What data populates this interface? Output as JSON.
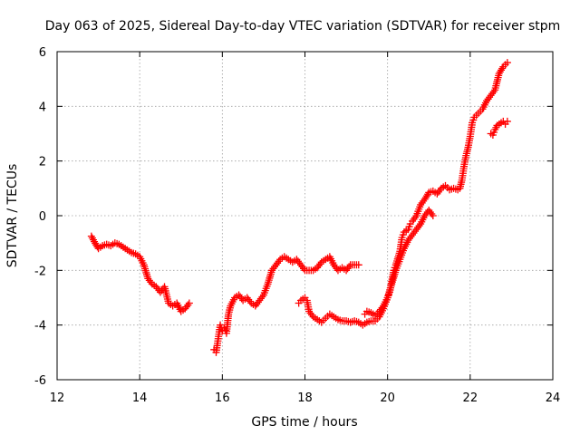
{
  "chart_data": {
    "type": "scatter",
    "title": "Day 063 of 2025, Sidereal Day-to-day VTEC variation (SDTVAR) for receiver stpm",
    "xlabel": "GPS time / hours",
    "ylabel": "SDTVAR / TECUs",
    "xlim": [
      12,
      24
    ],
    "ylim": [
      -6,
      6
    ],
    "xticks": [
      12,
      14,
      16,
      18,
      20,
      22,
      24
    ],
    "yticks": [
      -6,
      -4,
      -2,
      0,
      2,
      4,
      6
    ],
    "xtick_labels": [
      "12",
      "14",
      "16",
      "18",
      "20",
      "22",
      "24"
    ],
    "ytick_labels": [
      "-6",
      "-4",
      "-2",
      "0",
      "2",
      "4",
      "6"
    ],
    "grid": true,
    "marker": "+",
    "color": "#ff0000",
    "series": [
      {
        "name": "track-1",
        "points": [
          [
            12.83,
            -0.75
          ],
          [
            12.9,
            -0.95
          ],
          [
            13.0,
            -1.2
          ],
          [
            13.1,
            -1.1
          ],
          [
            13.2,
            -1.05
          ],
          [
            13.3,
            -1.1
          ],
          [
            13.4,
            -1.0
          ],
          [
            13.5,
            -1.05
          ],
          [
            13.6,
            -1.15
          ],
          [
            13.7,
            -1.25
          ],
          [
            13.8,
            -1.35
          ],
          [
            13.9,
            -1.4
          ],
          [
            14.0,
            -1.5
          ],
          [
            14.1,
            -1.8
          ],
          [
            14.2,
            -2.3
          ],
          [
            14.3,
            -2.5
          ],
          [
            14.4,
            -2.6
          ],
          [
            14.5,
            -2.8
          ],
          [
            14.6,
            -2.6
          ],
          [
            14.7,
            -3.2
          ],
          [
            14.8,
            -3.3
          ],
          [
            14.9,
            -3.2
          ],
          [
            15.0,
            -3.5
          ],
          [
            15.1,
            -3.4
          ],
          [
            15.2,
            -3.2
          ]
        ]
      },
      {
        "name": "track-2",
        "points": [
          [
            15.8,
            -4.9
          ],
          [
            15.85,
            -5.0
          ],
          [
            15.9,
            -4.5
          ],
          [
            15.95,
            -4.0
          ],
          [
            16.0,
            -4.2
          ],
          [
            16.05,
            -4.1
          ],
          [
            16.1,
            -4.3
          ],
          [
            16.15,
            -3.6
          ],
          [
            16.2,
            -3.3
          ],
          [
            16.3,
            -3.0
          ],
          [
            16.4,
            -2.9
          ],
          [
            16.5,
            -3.1
          ],
          [
            16.6,
            -3.0
          ],
          [
            16.7,
            -3.2
          ],
          [
            16.8,
            -3.3
          ],
          [
            16.9,
            -3.1
          ],
          [
            17.0,
            -2.9
          ],
          [
            17.1,
            -2.5
          ],
          [
            17.2,
            -2.0
          ],
          [
            17.3,
            -1.8
          ],
          [
            17.4,
            -1.6
          ],
          [
            17.5,
            -1.5
          ],
          [
            17.6,
            -1.6
          ],
          [
            17.7,
            -1.7
          ],
          [
            17.8,
            -1.6
          ],
          [
            17.9,
            -1.8
          ],
          [
            18.0,
            -2.0
          ],
          [
            18.1,
            -2.0
          ],
          [
            18.2,
            -2.0
          ],
          [
            18.3,
            -1.9
          ],
          [
            18.4,
            -1.7
          ],
          [
            18.5,
            -1.6
          ],
          [
            18.6,
            -1.5
          ],
          [
            18.7,
            -1.8
          ],
          [
            18.8,
            -2.0
          ],
          [
            18.9,
            -1.9
          ],
          [
            19.0,
            -2.0
          ],
          [
            19.1,
            -1.8
          ],
          [
            19.2,
            -1.8
          ],
          [
            19.3,
            -1.8
          ]
        ]
      },
      {
        "name": "track-3",
        "points": [
          [
            17.85,
            -3.2
          ],
          [
            17.9,
            -3.1
          ],
          [
            18.0,
            -3.0
          ],
          [
            18.05,
            -3.1
          ],
          [
            18.1,
            -3.5
          ],
          [
            18.2,
            -3.7
          ],
          [
            18.3,
            -3.8
          ],
          [
            18.4,
            -3.9
          ],
          [
            18.5,
            -3.75
          ],
          [
            18.6,
            -3.6
          ],
          [
            18.7,
            -3.7
          ],
          [
            18.8,
            -3.8
          ],
          [
            18.9,
            -3.85
          ],
          [
            19.0,
            -3.85
          ],
          [
            19.1,
            -3.9
          ],
          [
            19.2,
            -3.85
          ],
          [
            19.3,
            -3.9
          ],
          [
            19.4,
            -4.0
          ],
          [
            19.5,
            -3.9
          ],
          [
            19.6,
            -3.85
          ],
          [
            19.7,
            -3.85
          ],
          [
            19.8,
            -3.7
          ],
          [
            19.9,
            -3.4
          ],
          [
            20.0,
            -3.0
          ],
          [
            20.1,
            -2.5
          ],
          [
            20.2,
            -2.0
          ],
          [
            20.3,
            -1.6
          ],
          [
            20.4,
            -1.2
          ],
          [
            20.5,
            -0.9
          ],
          [
            20.6,
            -0.7
          ],
          [
            20.7,
            -0.5
          ],
          [
            20.8,
            -0.3
          ],
          [
            20.9,
            0.0
          ],
          [
            21.0,
            0.2
          ],
          [
            21.1,
            0.0
          ]
        ]
      },
      {
        "name": "track-4",
        "points": [
          [
            19.45,
            -3.6
          ],
          [
            19.5,
            -3.5
          ],
          [
            19.6,
            -3.55
          ],
          [
            19.7,
            -3.65
          ],
          [
            19.8,
            -3.5
          ],
          [
            19.9,
            -3.3
          ],
          [
            20.0,
            -3.0
          ],
          [
            20.05,
            -2.8
          ],
          [
            20.1,
            -2.4
          ],
          [
            20.15,
            -2.0
          ],
          [
            20.2,
            -1.8
          ],
          [
            20.3,
            -1.3
          ],
          [
            20.35,
            -0.8
          ],
          [
            20.4,
            -0.6
          ],
          [
            20.5,
            -0.5
          ],
          [
            20.55,
            -0.3
          ],
          [
            20.6,
            -0.2
          ],
          [
            20.7,
            0.0
          ],
          [
            20.8,
            0.4
          ],
          [
            20.9,
            0.6
          ],
          [
            21.0,
            0.85
          ],
          [
            21.1,
            0.9
          ],
          [
            21.2,
            0.8
          ],
          [
            21.3,
            1.0
          ],
          [
            21.4,
            1.1
          ],
          [
            21.5,
            0.95
          ],
          [
            21.6,
            1.0
          ],
          [
            21.7,
            0.95
          ],
          [
            21.75,
            1.0
          ],
          [
            21.8,
            1.3
          ],
          [
            21.85,
            1.8
          ],
          [
            21.9,
            2.2
          ],
          [
            21.95,
            2.5
          ],
          [
            22.0,
            2.9
          ],
          [
            22.05,
            3.4
          ],
          [
            22.1,
            3.6
          ],
          [
            22.2,
            3.75
          ],
          [
            22.3,
            3.9
          ],
          [
            22.4,
            4.2
          ],
          [
            22.5,
            4.4
          ],
          [
            22.6,
            4.6
          ],
          [
            22.65,
            4.9
          ],
          [
            22.7,
            5.2
          ],
          [
            22.8,
            5.45
          ],
          [
            22.9,
            5.6
          ]
        ]
      },
      {
        "name": "track-5",
        "points": [
          [
            22.5,
            3.0
          ],
          [
            22.55,
            2.95
          ],
          [
            22.6,
            3.15
          ],
          [
            22.65,
            3.3
          ],
          [
            22.7,
            3.35
          ],
          [
            22.8,
            3.45
          ],
          [
            22.85,
            3.35
          ],
          [
            22.9,
            3.45
          ]
        ]
      }
    ]
  }
}
